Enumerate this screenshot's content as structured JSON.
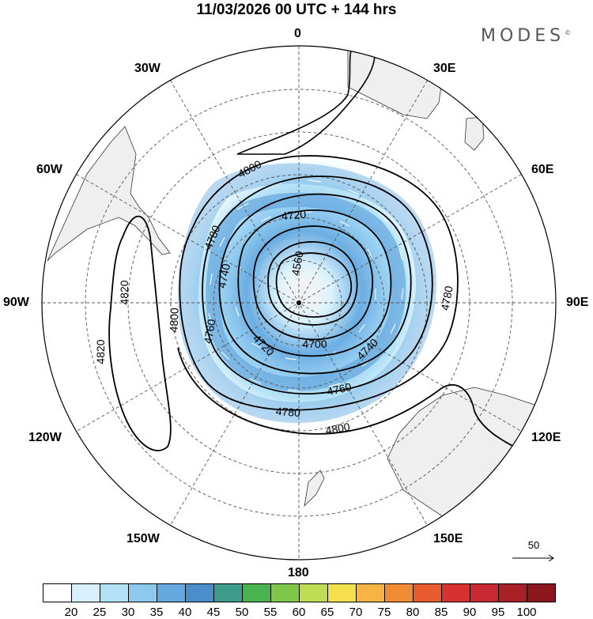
{
  "header": {
    "title": "11/03/2026  00 UTC  + 144 hrs",
    "brand": "MODES",
    "brand_mark": "©"
  },
  "longitude_labels": {
    "top": "0",
    "bottom": "180",
    "left": "90W",
    "right": "90E",
    "upper_left_1": "30W",
    "upper_left_2": "60W",
    "upper_right_1": "30E",
    "upper_right_2": "60E",
    "lower_left_1": "120W",
    "lower_left_2": "150W",
    "lower_right_1": "120E",
    "lower_right_2": "150E"
  },
  "contour_labels": [
    "4800",
    "4780",
    "4720",
    "4560",
    "4740",
    "4700",
    "4760",
    "4780",
    "4800",
    "4820",
    "4820",
    "4800",
    "4780",
    "4760",
    "4740",
    "4720"
  ],
  "wind_reference": {
    "value": "50"
  },
  "colorbar": {
    "colors": [
      "#ffffff",
      "#d6f1fd",
      "#b3e2f7",
      "#8dc9ef",
      "#64a9e0",
      "#4a8fcb",
      "#3f9c8b",
      "#48b34f",
      "#7fc64a",
      "#bfdc55",
      "#f4e04c",
      "#f7b344",
      "#f08b36",
      "#e85a30",
      "#d93030",
      "#c62931",
      "#a82028",
      "#8b171c"
    ],
    "labels": [
      "20",
      "25",
      "30",
      "35",
      "40",
      "45",
      "50",
      "55",
      "60",
      "65",
      "70",
      "75",
      "80",
      "85",
      "90",
      "95",
      "100"
    ]
  }
}
